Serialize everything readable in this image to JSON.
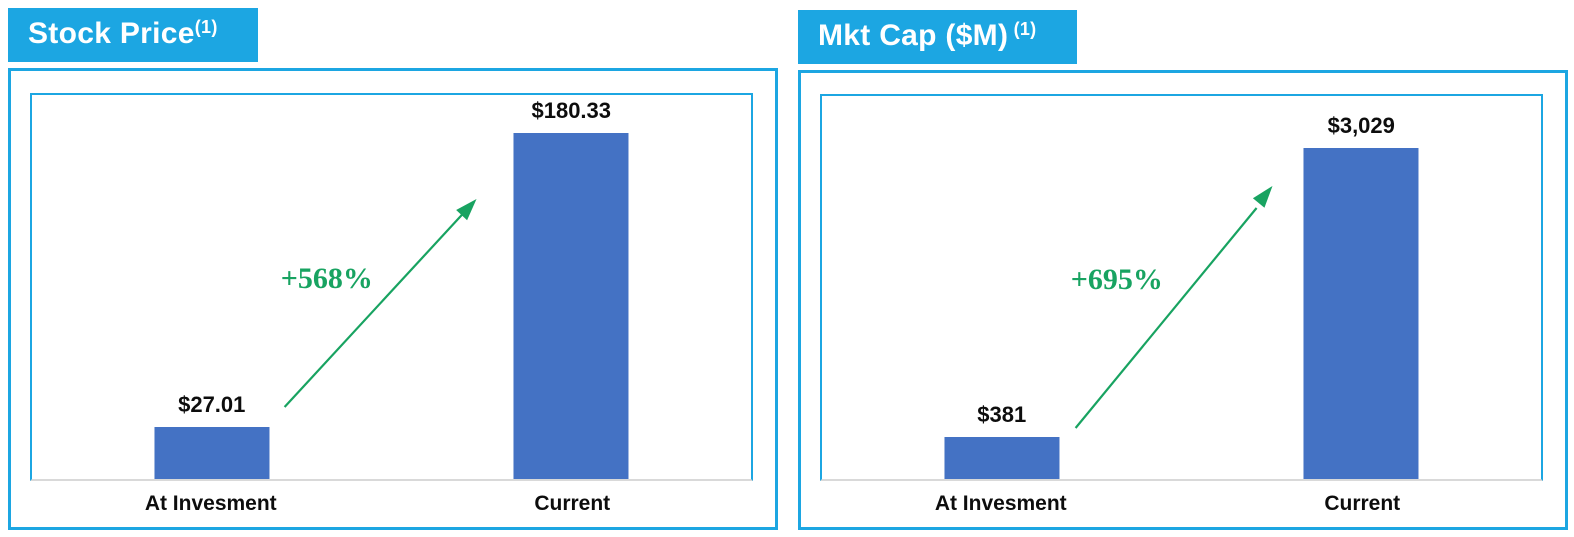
{
  "colors": {
    "accent_cyan": "#1ca6e2",
    "bar_blue": "#4472c4",
    "arrow_green": "#18a361",
    "axis_gray": "#d9d9d9",
    "label_black": "#0d0d0d"
  },
  "chart_data": [
    {
      "type": "bar",
      "title": "Stock Price",
      "title_superscript": "(1)",
      "categories": [
        "At Invesment",
        "Current"
      ],
      "values": [
        27.01,
        180.33
      ],
      "value_labels": [
        "$27.01",
        "$180.33"
      ],
      "growth_label": "+568%",
      "ylim": [
        0,
        200
      ],
      "grid": false,
      "legend": false,
      "data_labels": true
    },
    {
      "type": "bar",
      "title": "Mkt Cap ($M)",
      "title_superscript": " (1)",
      "categories": [
        "At Invesment",
        "Current"
      ],
      "values": [
        381,
        3029
      ],
      "value_labels": [
        "$381",
        "$3,029"
      ],
      "growth_label": "+695%",
      "ylim": [
        0,
        3500
      ],
      "grid": false,
      "legend": false,
      "data_labels": true
    }
  ]
}
